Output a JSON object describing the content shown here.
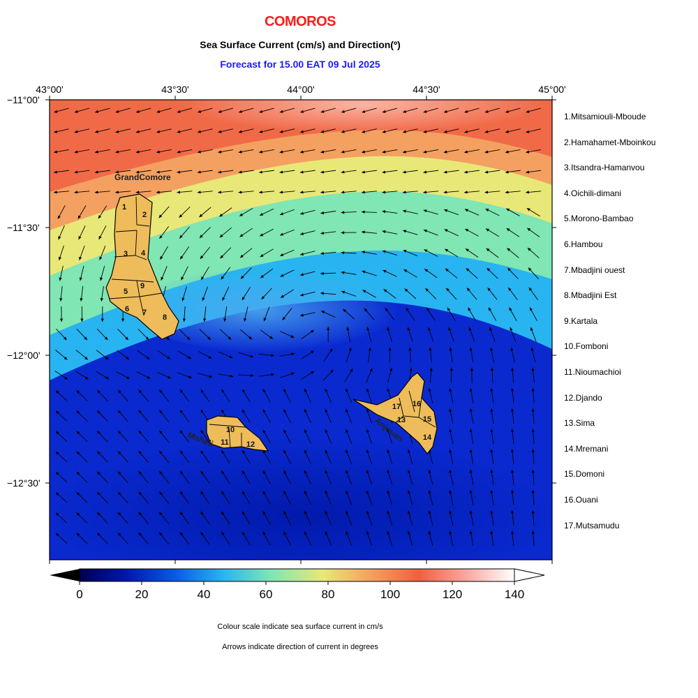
{
  "title": "COMOROS",
  "subtitle": "Sea Surface Current (cm/s) and Direction(º)",
  "forecast": "Forecast for  15.00 EAT 09 Jul 2025",
  "lon_labels": [
    "43°00'",
    "43°30'",
    "44°00'",
    "44°30'",
    "45°00'"
  ],
  "lat_labels": [
    "−11°00'",
    "−11°30'",
    "−12°00'",
    "−12°30'"
  ],
  "islands": {
    "grand_comore": "GrandComore",
    "moheli": "Moheli",
    "anjouan": "Anjouan"
  },
  "district_numbers": [
    "1",
    "2",
    "3",
    "4",
    "5",
    "6",
    "7",
    "8",
    "9",
    "10",
    "11",
    "12",
    "13",
    "14",
    "15",
    "16",
    "17"
  ],
  "districts": [
    "1.Mitsamiouli-Mboude",
    "2.Hamahamet-Mboinkou",
    "3.Itsandra-Hamanvou",
    "4.Oichili-dimani",
    "5.Morono-Bambao",
    "6.Hambou",
    "7.Mbadjini ouest",
    "8.Mbadjini Est",
    "9.Kartala",
    "10.Fomboni",
    "11.Nioumachioi",
    "12.Djando",
    "13.Sima",
    "14.Mremani",
    "15.Domoni",
    "16.Ouani",
    "17.Mutsamudu"
  ],
  "colorbar": {
    "ticks": [
      "0",
      "20",
      "40",
      "60",
      "80",
      "100",
      "120",
      "140"
    ],
    "range": [
      0,
      140
    ],
    "colors": [
      "#000050",
      "#0018b0",
      "#0a5ae6",
      "#28b4f0",
      "#7fe6b4",
      "#e8e878",
      "#f4a060",
      "#f06040",
      "#f8a8a0",
      "#ffffff"
    ]
  },
  "captions": [
    "Colour scale indicate sea surface current in cm/s",
    "Arrows indicate direction of current in degrees"
  ]
}
